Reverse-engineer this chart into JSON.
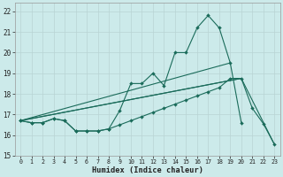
{
  "xlabel": "Humidex (Indice chaleur)",
  "bg_color": "#cceaea",
  "grid_color": "#b8d4d4",
  "line_color": "#1a6b5a",
  "xlim": [
    -0.5,
    23.5
  ],
  "ylim": [
    15,
    22.4
  ],
  "xticks": [
    0,
    1,
    2,
    3,
    4,
    5,
    6,
    7,
    8,
    9,
    10,
    11,
    12,
    13,
    14,
    15,
    16,
    17,
    18,
    19,
    20,
    21,
    22,
    23
  ],
  "yticks": [
    15,
    16,
    17,
    18,
    19,
    20,
    21,
    22
  ],
  "curve1_x": [
    0,
    1,
    2,
    3,
    4,
    5,
    6,
    7,
    8,
    9,
    10,
    11,
    12,
    13,
    14,
    15,
    16,
    17,
    18,
    19,
    20
  ],
  "curve1_y": [
    16.7,
    16.6,
    16.6,
    16.8,
    16.7,
    16.2,
    16.2,
    16.2,
    16.3,
    17.2,
    18.5,
    18.5,
    19.0,
    18.4,
    20.0,
    20.0,
    21.2,
    21.8,
    21.2,
    19.5,
    16.6
  ],
  "curve2_x": [
    0,
    1,
    2,
    3,
    4,
    5,
    6,
    7,
    8,
    9,
    10,
    11,
    12,
    13,
    14,
    15,
    16,
    17,
    18,
    19,
    20,
    21,
    22,
    23
  ],
  "curve2_y": [
    16.7,
    16.6,
    16.6,
    16.8,
    16.7,
    16.2,
    16.2,
    16.2,
    16.3,
    16.5,
    16.7,
    16.9,
    17.1,
    17.3,
    17.5,
    17.7,
    17.9,
    18.1,
    18.3,
    18.75,
    18.75,
    17.3,
    16.55,
    15.55
  ],
  "line3_x": [
    0,
    19
  ],
  "line3_y": [
    16.7,
    19.5
  ],
  "line4_x": [
    0,
    20
  ],
  "line4_y": [
    16.7,
    18.75
  ],
  "line5_x": [
    0,
    20,
    23
  ],
  "line5_y": [
    16.7,
    18.75,
    15.55
  ]
}
